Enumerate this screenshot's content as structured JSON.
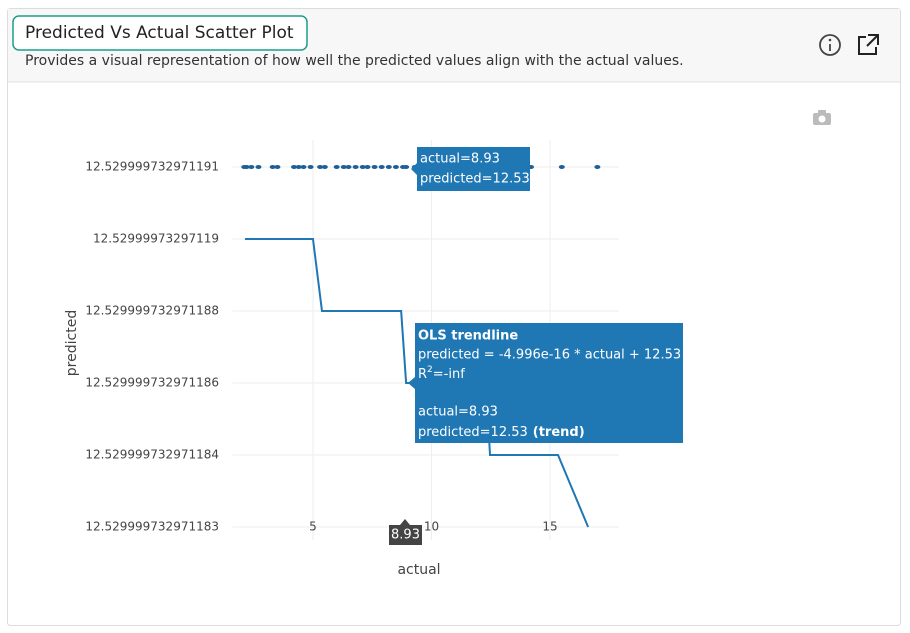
{
  "chart_data": {
    "type": "scatter",
    "title": "Predicted Vs Actual Scatter Plot",
    "subtitle": "Provides a visual representation of how well the predicted values align with the actual values.",
    "xlabel": "actual",
    "ylabel": "predicted",
    "xlim": [
      1.6,
      17.9
    ],
    "ylim": [
      12.529999732971183,
      12.529999732971191
    ],
    "xticks": [
      5,
      10,
      15
    ],
    "yticks": [
      12.529999732971183,
      12.529999732971184,
      12.529999732971186,
      12.529999732971188,
      12.52999973297119,
      12.529999732971191
    ],
    "grid": true,
    "series": [
      {
        "color": "#1f5f99",
        "x": [
          2.1,
          2.2,
          2.4,
          2.7,
          3.3,
          3.5,
          4.2,
          4.4,
          4.6,
          4.9,
          5.3,
          5.5,
          6.0,
          6.3,
          6.5,
          6.8,
          7.1,
          7.3,
          7.6,
          7.9,
          8.2,
          8.5,
          8.8,
          8.93,
          9.3,
          9.6,
          10.2,
          10.4,
          11.1,
          11.4,
          12.0,
          12.3,
          12.7,
          13.0,
          14.2,
          15.5,
          17.0
        ],
        "y": [
          12.529999732971191,
          12.529999732971191,
          12.529999732971191,
          12.529999732971191,
          12.529999732971191,
          12.529999732971191,
          12.529999732971191,
          12.529999732971191,
          12.529999732971191,
          12.529999732971191,
          12.529999732971191,
          12.529999732971191,
          12.529999732971191,
          12.529999732971191,
          12.529999732971191,
          12.529999732971191,
          12.529999732971191,
          12.529999732971191,
          12.529999732971191,
          12.529999732971191,
          12.529999732971191,
          12.529999732971191,
          12.529999732971191,
          12.529999732971191,
          12.529999732971191,
          12.529999732971191,
          12.529999732971191,
          12.529999732971191,
          12.529999732971191,
          12.529999732971191,
          12.529999732971191,
          12.529999732971191,
          12.529999732971191,
          12.529999732971191,
          12.529999732971191,
          12.529999732971191,
          12.529999732971191
        ]
      },
      {
        "name": "OLS trendline",
        "color": "#1f77b4",
        "x": [
          2.13,
          5.0,
          5.38,
          8.72,
          8.93,
          12.3,
          12.47,
          15.34,
          16.61
        ],
        "y": [
          12.52999973297119,
          12.52999973297119,
          12.529999732971188,
          12.529999732971188,
          12.529999732971186,
          12.529999732971186,
          12.529999732971184,
          12.529999732971184,
          12.529999732971183
        ]
      }
    ],
    "hover_point": [
      "actual=8.93",
      "predicted=12.53"
    ],
    "hover_trend": {
      "equation": "predicted = -4.996e-16 * actual + 12.53",
      "r2_base": "R",
      "r2_sup": "2",
      "r2_rest": "=-inf",
      "actual": "actual=8.93",
      "predicted": "predicted=12.53",
      "trend": "(trend)"
    },
    "hover_x": "8.93"
  }
}
